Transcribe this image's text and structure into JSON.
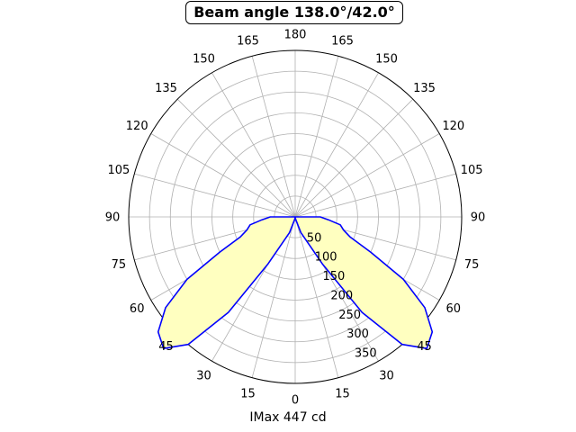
{
  "chart_data": {
    "type": "polar",
    "title": "Beam angle 138.0°/42.0°",
    "xlabel": "IMax 447 cd",
    "angle_tick_labels": [
      "180",
      "165",
      "150",
      "135",
      "120",
      "105",
      "90",
      "75",
      "60",
      "45",
      "30",
      "15",
      "0",
      "15",
      "30",
      "45",
      "60",
      "75",
      "90",
      "105",
      "120",
      "135",
      "150",
      "165"
    ],
    "radial_tick_labels": [
      "50",
      "100",
      "150",
      "200",
      "250",
      "300",
      "350"
    ],
    "radial_range": [
      0,
      400
    ],
    "grid": true,
    "line_color": "#0000ff",
    "fill_color": "#ffffc0",
    "series": [
      {
        "angles_deg": [
          0,
          10,
          20,
          30,
          35,
          40,
          45,
          50,
          55,
          60,
          65,
          70,
          75,
          80,
          85,
          90,
          92
        ],
        "values": [
          0,
          5,
          40,
          130,
          280,
          400,
          447,
          430,
          380,
          300,
          200,
          140,
          120,
          110,
          80,
          60,
          0
        ]
      }
    ]
  }
}
